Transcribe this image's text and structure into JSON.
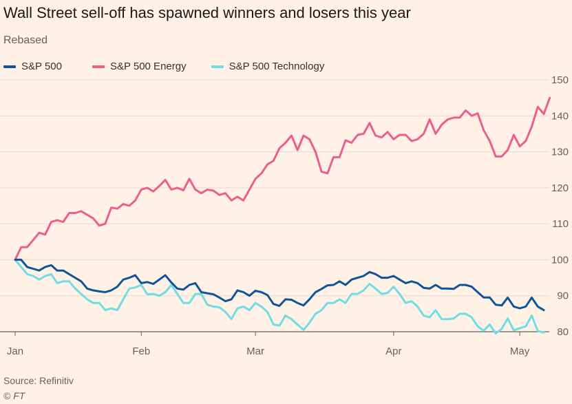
{
  "title": "Wall Street sell-off has spawned winners and losers this year",
  "subtitle": "Rebased",
  "source": "Source: Refinitiv",
  "copyright": "© FT",
  "colors": {
    "sp500": "#0f5499",
    "energy": "#eb5e8d",
    "tech": "#70dce6",
    "grid": "#e6d9ce",
    "axis": "#66605c"
  },
  "chart_data": {
    "type": "line",
    "title": "Wall Street sell-off has spawned winners and losers this year",
    "subtitle": "Rebased",
    "ylim": [
      80,
      150
    ],
    "yticks": [
      80,
      90,
      100,
      110,
      120,
      130,
      140,
      150
    ],
    "ytick_labels": [
      "80",
      "90",
      "100",
      "110",
      "120",
      "130",
      "140",
      "150"
    ],
    "xtick_labels": [
      "Jan",
      "Feb",
      "Mar",
      "Apr",
      "May"
    ],
    "xtick_positions": [
      0,
      21,
      40,
      63,
      84
    ],
    "grid": true,
    "legend_position": "top-left",
    "series": [
      {
        "name": "S&P 500",
        "color": "#0f5499",
        "values": [
          100,
          100,
          98,
          97.5,
          97,
          98,
          98.5,
          97,
          97,
          96,
          95,
          94,
          92,
          91.5,
          91.2,
          91,
          91.5,
          92.5,
          94.5,
          95,
          95.7,
          93.5,
          93.8,
          93.3,
          94.5,
          95.7,
          93.7,
          92,
          91.7,
          93,
          93.5,
          91,
          90.7,
          90.4,
          89.5,
          88.5,
          89,
          91.5,
          91,
          90,
          91.4,
          91,
          90.2,
          87.7,
          87.2,
          89,
          88.9,
          88,
          87.3,
          89,
          91,
          91.9,
          92.9,
          93,
          94,
          93,
          94.5,
          95,
          95.5,
          96.6,
          96,
          95,
          95,
          95.5,
          94.5,
          93.5,
          94,
          93.5,
          92.2,
          92,
          93,
          92,
          92,
          91.9,
          93,
          93,
          92.5,
          91,
          89.5,
          89.5,
          87.5,
          87.3,
          89.5,
          87,
          86.5,
          87,
          89.5,
          87,
          86
        ]
      },
      {
        "name": "S&P 500 Energy",
        "color": "#eb5e8d",
        "values": [
          100,
          103.5,
          103.5,
          105.5,
          107.5,
          107,
          110.5,
          111,
          110.5,
          113,
          113,
          113.5,
          112.5,
          111.5,
          109.5,
          110,
          114.5,
          114.2,
          115.5,
          115,
          116.5,
          119.5,
          120,
          119,
          120.5,
          122.2,
          119.5,
          120,
          119.3,
          122.5,
          119.5,
          118.5,
          119.5,
          119.2,
          118,
          118.5,
          116.5,
          117.5,
          116.5,
          119.5,
          122.5,
          124,
          126.5,
          127.5,
          131,
          132.5,
          134.5,
          130.5,
          134.5,
          133.5,
          130,
          124.5,
          124,
          128.5,
          128.5,
          133.2,
          132.5,
          134.7,
          135,
          138,
          134.5,
          134,
          135.5,
          133.5,
          134.7,
          134.7,
          133,
          133.5,
          135,
          139,
          135,
          137.5,
          139,
          139.5,
          139.5,
          141.5,
          140,
          140.7,
          136,
          133,
          128.7,
          128.7,
          130.5,
          134.7,
          131.5,
          133,
          137,
          142.5,
          140.5,
          145
        ]
      },
      {
        "name": "S&P 500 Technology",
        "color": "#70dce6",
        "values": [
          100,
          98,
          96,
          95.5,
          94.5,
          95.5,
          96,
          93.5,
          94,
          94,
          92,
          90.5,
          89,
          88,
          88,
          86,
          86.5,
          86,
          89,
          92,
          92.3,
          93,
          90.4,
          90.5,
          90,
          91,
          93,
          90.5,
          88,
          88,
          90.5,
          90.5,
          87.5,
          87,
          86.8,
          85.5,
          83.5,
          86.5,
          87,
          86,
          88,
          87,
          85.5,
          82,
          81.7,
          84.5,
          83.5,
          82,
          80.5,
          82.5,
          85,
          86,
          88,
          88,
          89,
          88,
          90.5,
          90.5,
          91.5,
          93.3,
          92,
          90.5,
          90.8,
          92.5,
          90.5,
          88,
          88.5,
          87,
          84.5,
          84,
          86,
          83.5,
          83.5,
          83.7,
          85,
          85,
          84,
          81.5,
          80.3,
          82,
          79.5,
          80.8,
          83.7,
          80.4,
          81,
          81.5,
          84.5,
          80.2,
          79.8
        ]
      }
    ]
  }
}
